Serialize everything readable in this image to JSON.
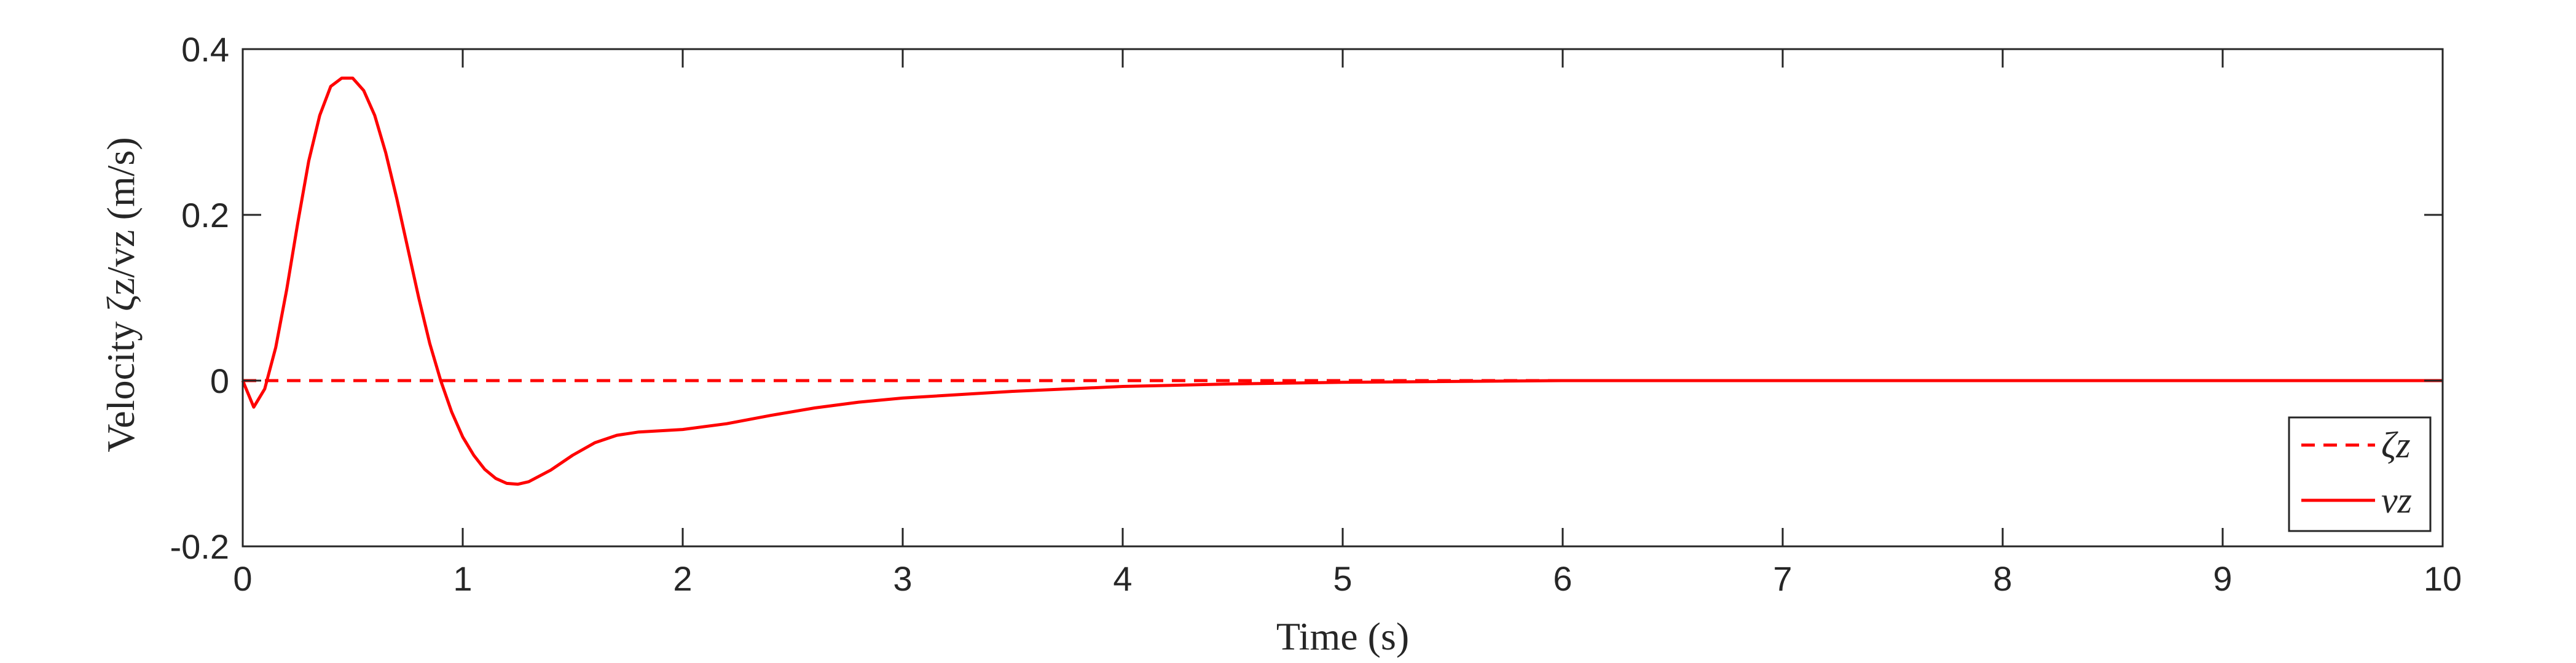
{
  "chart_data": {
    "type": "line",
    "xlabel": "Time (s)",
    "ylabel": "Velocity ζz/vz (m/s)",
    "xlim": [
      0,
      10
    ],
    "ylim": [
      -0.2,
      0.4
    ],
    "xticks": [
      0,
      1,
      2,
      3,
      4,
      5,
      6,
      7,
      8,
      9,
      10
    ],
    "yticks": [
      -0.2,
      0,
      0.2,
      0.4
    ],
    "xtick_labels": [
      "0",
      "1",
      "2",
      "3",
      "4",
      "5",
      "6",
      "7",
      "8",
      "9",
      "10"
    ],
    "ytick_labels": [
      "-0.2",
      "0",
      "0.2",
      "0.4"
    ],
    "grid": false,
    "legend_position": "bottom-right",
    "series": [
      {
        "name": "ζz",
        "style": "dashed",
        "color": "#ff0000",
        "x": [
          0,
          10
        ],
        "y": [
          0,
          0
        ]
      },
      {
        "name": "vz",
        "style": "solid",
        "color": "#ff0000",
        "x": [
          0,
          0.05,
          0.1,
          0.15,
          0.2,
          0.25,
          0.3,
          0.35,
          0.4,
          0.45,
          0.5,
          0.55,
          0.6,
          0.65,
          0.7,
          0.75,
          0.8,
          0.85,
          0.9,
          0.95,
          1.0,
          1.05,
          1.1,
          1.15,
          1.2,
          1.25,
          1.3,
          1.4,
          1.5,
          1.6,
          1.7,
          1.8,
          2.0,
          2.2,
          2.4,
          2.6,
          2.8,
          3.0,
          3.5,
          4.0,
          4.5,
          5.0,
          5.5,
          6.0,
          7.0,
          8.0,
          9.0,
          10.0
        ],
        "y": [
          0,
          -0.032,
          -0.01,
          0.04,
          0.11,
          0.19,
          0.265,
          0.32,
          0.355,
          0.365,
          0.365,
          0.35,
          0.32,
          0.275,
          0.22,
          0.16,
          0.1,
          0.045,
          0.0,
          -0.038,
          -0.068,
          -0.09,
          -0.107,
          -0.118,
          -0.124,
          -0.125,
          -0.122,
          -0.108,
          -0.09,
          -0.075,
          -0.066,
          -0.062,
          -0.059,
          -0.052,
          -0.042,
          -0.033,
          -0.026,
          -0.021,
          -0.013,
          -0.007,
          -0.004,
          -0.002,
          -0.001,
          0.0,
          0.0,
          0.0,
          0.0,
          0.0
        ]
      }
    ]
  }
}
